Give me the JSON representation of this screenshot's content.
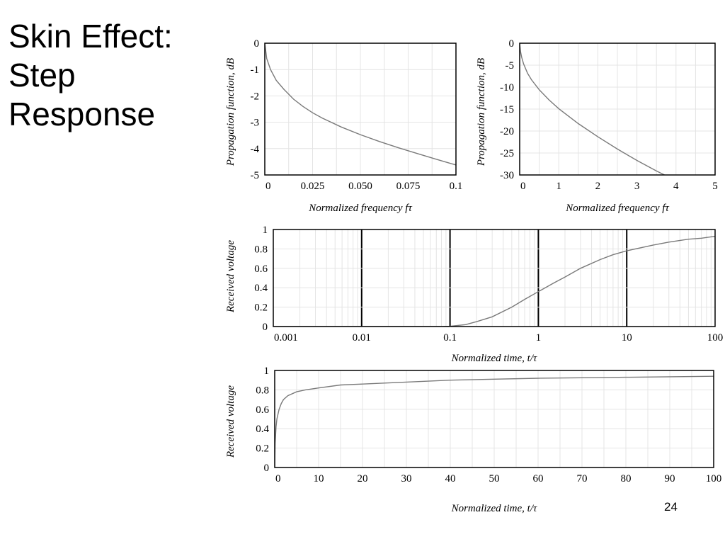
{
  "slide": {
    "title_lines": [
      "Skin Effect:",
      "Step",
      "Response"
    ],
    "page_number": "24"
  },
  "colors": {
    "curve": "#7a7a7a",
    "grid": "#e4e4e4",
    "frame": "#000000",
    "major_grid": "#000000"
  },
  "chart_data": [
    {
      "type": "line",
      "xlabel": "Normalized frequency fτ",
      "ylabel": "Propagation function, dB",
      "xlim": [
        0,
        0.1
      ],
      "ylim": [
        -5,
        0
      ],
      "xticks": [
        0,
        0.025,
        0.05,
        0.075,
        0.1
      ],
      "xtick_labels": [
        "0",
        "0.025",
        "0.050",
        "0.075",
        "0.1"
      ],
      "yticks": [
        0,
        -1,
        -2,
        -3,
        -4,
        -5
      ],
      "ytick_labels": [
        "0",
        "-1",
        "-2",
        "-3",
        "-4",
        "-5"
      ],
      "grid": true,
      "series": [
        {
          "x": [
            0,
            0.001,
            0.003,
            0.006,
            0.01,
            0.015,
            0.02,
            0.025,
            0.03,
            0.04,
            0.05,
            0.06,
            0.07,
            0.08,
            0.09,
            0.1
          ],
          "y": [
            0,
            -0.58,
            -1.0,
            -1.41,
            -1.75,
            -2.12,
            -2.4,
            -2.64,
            -2.84,
            -3.18,
            -3.47,
            -3.73,
            -3.97,
            -4.19,
            -4.41,
            -4.62
          ]
        }
      ]
    },
    {
      "type": "line",
      "xlabel": "Normalized frequency fτ",
      "ylabel": "Propagation function, dB",
      "xlim": [
        0,
        5
      ],
      "ylim": [
        -30,
        0
      ],
      "xticks": [
        0,
        1,
        2,
        3,
        4,
        5
      ],
      "xtick_labels": [
        "0",
        "1",
        "2",
        "3",
        "4",
        "5"
      ],
      "yticks": [
        0,
        -5,
        -10,
        -15,
        -20,
        -25,
        -30
      ],
      "ytick_labels": [
        "0",
        "-5",
        "-10",
        "-15",
        "-20",
        "-25",
        "-30"
      ],
      "grid": true,
      "series": [
        {
          "x": [
            0,
            0.02,
            0.05,
            0.1,
            0.2,
            0.3,
            0.5,
            0.75,
            1.0,
            1.5,
            2.0,
            2.5,
            3.0,
            3.5,
            3.75
          ],
          "y": [
            0,
            -1.8,
            -3.2,
            -4.7,
            -6.8,
            -8.3,
            -10.6,
            -12.9,
            -14.9,
            -18.3,
            -21.3,
            -24.1,
            -26.7,
            -29.1,
            -30.2
          ]
        }
      ]
    },
    {
      "type": "line",
      "xscale": "log",
      "xlabel": "Normalized time, t/τ",
      "ylabel": "Received voltage",
      "xlim": [
        0.001,
        100
      ],
      "ylim": [
        0,
        1
      ],
      "xticks": [
        0.001,
        0.01,
        0.1,
        1,
        10,
        100
      ],
      "xtick_labels": [
        "0.001",
        "0.01",
        "0.1",
        "1",
        "10",
        "100"
      ],
      "yticks": [
        0,
        0.2,
        0.4,
        0.6,
        0.8,
        1
      ],
      "ytick_labels": [
        "0",
        "0.2",
        "0.4",
        "0.6",
        "0.8",
        "1"
      ],
      "grid": true,
      "series": [
        {
          "x": [
            0.001,
            0.03,
            0.06,
            0.08,
            0.1,
            0.15,
            0.2,
            0.3,
            0.5,
            0.7,
            1,
            1.5,
            2,
            3,
            5,
            7,
            10,
            20,
            30,
            50,
            70,
            100
          ],
          "y": [
            0,
            0,
            0,
            0.001,
            0.003,
            0.02,
            0.05,
            0.1,
            0.2,
            0.28,
            0.36,
            0.45,
            0.51,
            0.6,
            0.69,
            0.74,
            0.78,
            0.84,
            0.87,
            0.9,
            0.91,
            0.93
          ]
        }
      ]
    },
    {
      "type": "line",
      "xlabel": "Normalized time, t/τ",
      "ylabel": "Received voltage",
      "xlim": [
        0,
        100
      ],
      "ylim": [
        0,
        1
      ],
      "xticks": [
        0,
        10,
        20,
        30,
        40,
        50,
        60,
        70,
        80,
        90,
        100
      ],
      "xtick_labels": [
        "0",
        "10",
        "20",
        "30",
        "40",
        "50",
        "60",
        "70",
        "80",
        "90",
        "100"
      ],
      "yticks": [
        0,
        0.2,
        0.4,
        0.6,
        0.8,
        1
      ],
      "ytick_labels": [
        "0",
        "0.2",
        "0.4",
        "0.6",
        "0.8",
        "1"
      ],
      "grid": true,
      "series": [
        {
          "x": [
            0,
            0.1,
            0.3,
            0.5,
            1,
            1.5,
            2,
            3,
            5,
            7,
            10,
            15,
            20,
            30,
            40,
            50,
            60,
            70,
            80,
            90,
            100
          ],
          "y": [
            0,
            0.25,
            0.42,
            0.5,
            0.6,
            0.66,
            0.7,
            0.74,
            0.78,
            0.8,
            0.82,
            0.85,
            0.86,
            0.88,
            0.9,
            0.91,
            0.92,
            0.925,
            0.93,
            0.935,
            0.94
          ]
        }
      ]
    }
  ]
}
